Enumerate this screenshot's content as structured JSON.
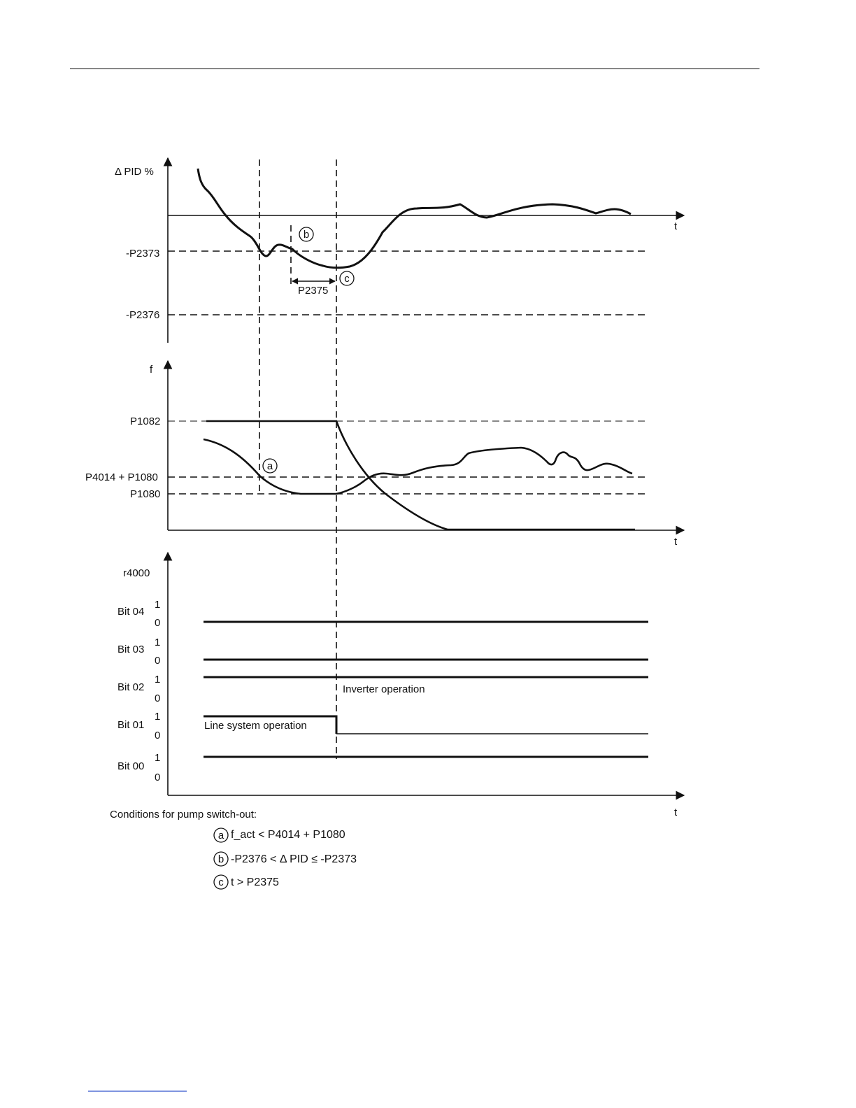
{
  "panel1": {
    "y_label": "Δ PID %",
    "t_label": "t",
    "level_p2373": "-P2373",
    "level_p2376": "-P2376",
    "marker_b": "b",
    "marker_c": "c",
    "interval_label": "P2375"
  },
  "panel2": {
    "y_label": "f",
    "t_label": "t",
    "level_p1082": "P1082",
    "level_p4014_p1080": "P4014 + P1080",
    "level_p1080": "P1080",
    "marker_a": "a"
  },
  "panel3": {
    "y_label": "r4000",
    "t_label": "t",
    "bits": [
      {
        "name": "Bit 04",
        "one": "1",
        "zero": "0"
      },
      {
        "name": "Bit 03",
        "one": "1",
        "zero": "0"
      },
      {
        "name": "Bit 02",
        "one": "1",
        "zero": "0"
      },
      {
        "name": "Bit 01",
        "one": "1",
        "zero": "0"
      },
      {
        "name": "Bit 00",
        "one": "1",
        "zero": "0"
      }
    ],
    "inverter_label": "Inverter operation",
    "line_system_label": "Line system operation"
  },
  "conditions": {
    "title": "Conditions for pump switch-out:",
    "items": [
      {
        "marker": "a",
        "text": "f_act < P4014 + P1080"
      },
      {
        "marker": "b",
        "text": "-P2376 < Δ PID ≤ -P2373"
      },
      {
        "marker": "c",
        "text": "t > P2375"
      }
    ]
  },
  "colors": {
    "line": "#111111",
    "footer_link": "#3355cc"
  }
}
